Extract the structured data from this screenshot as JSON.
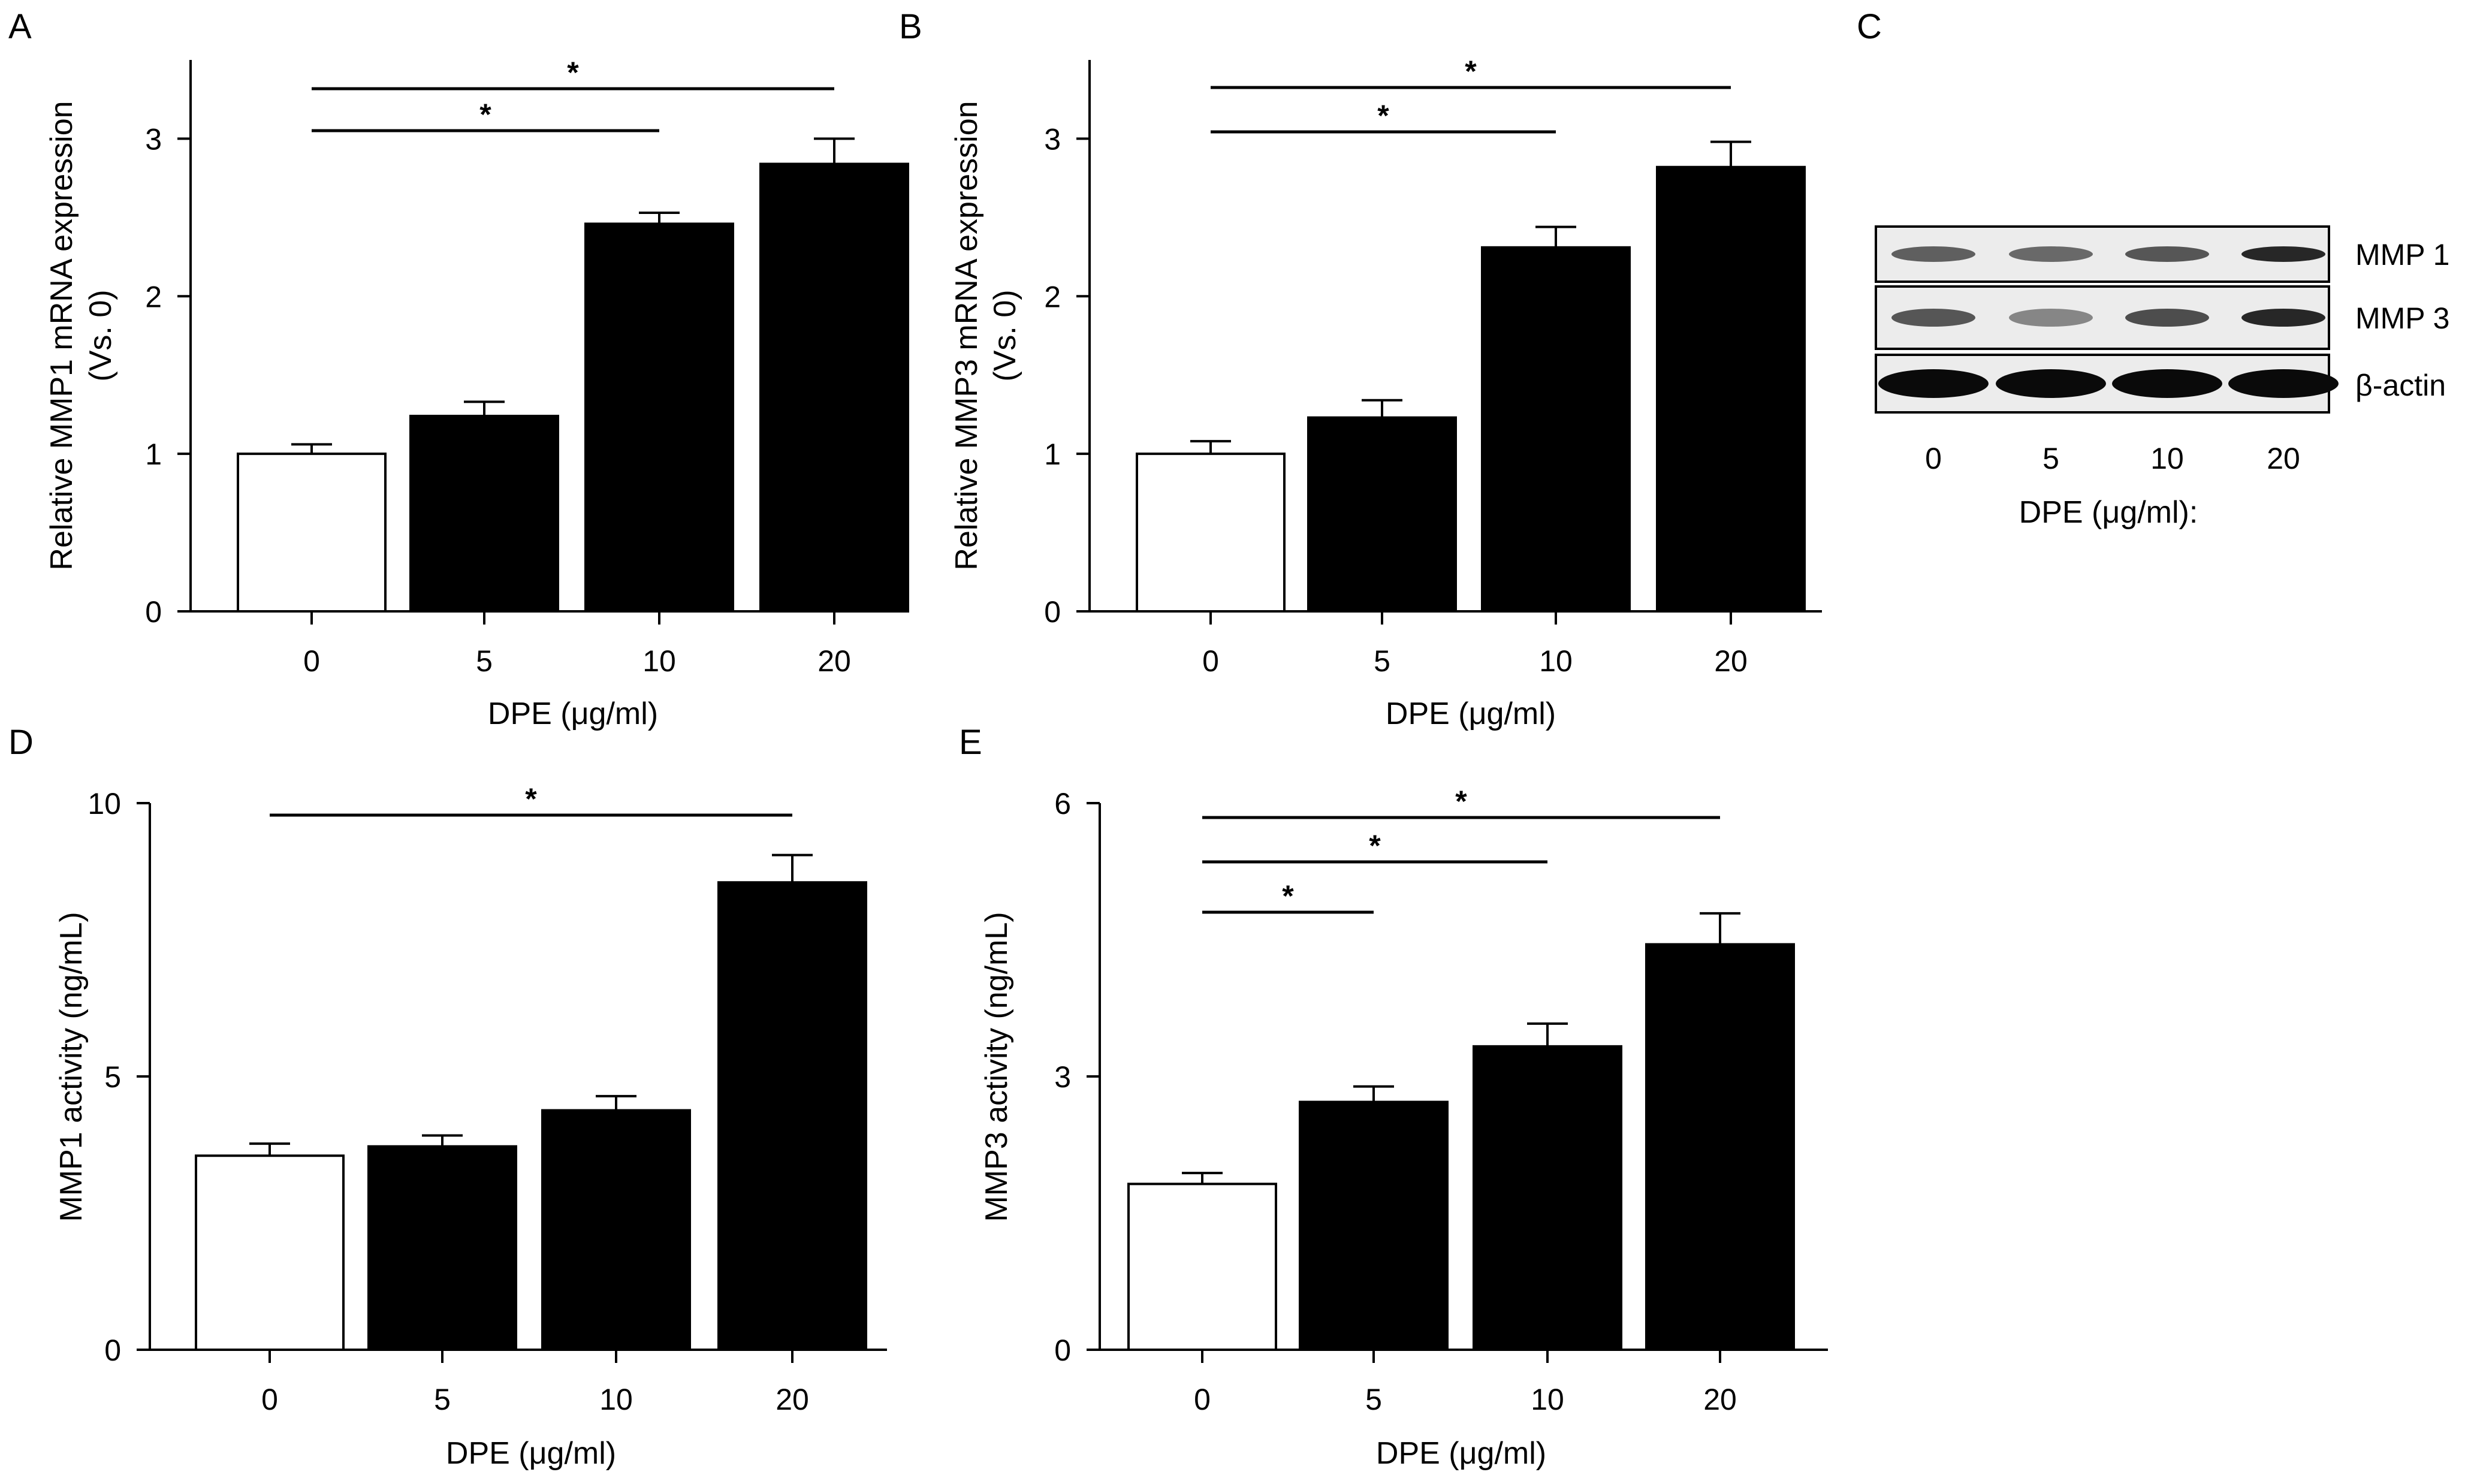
{
  "chart_data": [
    {
      "panel": "A",
      "type": "bar",
      "categories": [
        "0",
        "5",
        "10",
        "20"
      ],
      "values": [
        1.0,
        1.24,
        2.46,
        2.84
      ],
      "errors": [
        0.06,
        0.09,
        0.07,
        0.16
      ],
      "bar_colors": [
        "#ffffff",
        "#000000",
        "#000000",
        "#000000"
      ],
      "ylabel": "Relative MMP1 mRNA expression",
      "ylabel2": "(Vs. 0)",
      "xlabel": "DPE (μg/ml)",
      "ylim": [
        0,
        3.5
      ],
      "yticks": [
        0,
        1,
        2,
        3
      ],
      "significance": [
        {
          "from": "0",
          "to": "20",
          "label": "*"
        },
        {
          "from": "0",
          "to": "10",
          "label": "*"
        }
      ]
    },
    {
      "panel": "B",
      "type": "bar",
      "categories": [
        "0",
        "5",
        "10",
        "20"
      ],
      "values": [
        1.0,
        1.23,
        2.31,
        2.82
      ],
      "errors": [
        0.08,
        0.11,
        0.13,
        0.16
      ],
      "bar_colors": [
        "#ffffff",
        "#000000",
        "#000000",
        "#000000"
      ],
      "ylabel": "Relative MMP3 mRNA expression",
      "ylabel2": "(Vs. 0)",
      "xlabel": "DPE (μg/ml)",
      "ylim": [
        0,
        3.5
      ],
      "yticks": [
        0,
        1,
        2,
        3
      ],
      "significance": [
        {
          "from": "0",
          "to": "20",
          "label": "*"
        },
        {
          "from": "0",
          "to": "10",
          "label": "*"
        }
      ]
    },
    {
      "panel": "D",
      "type": "bar",
      "categories": [
        "0",
        "5",
        "10",
        "20"
      ],
      "values": [
        3.55,
        3.72,
        4.38,
        8.55
      ],
      "errors": [
        0.22,
        0.2,
        0.26,
        0.5
      ],
      "bar_colors": [
        "#ffffff",
        "#000000",
        "#000000",
        "#000000"
      ],
      "ylabel": "MMP1  activity (ng/mL)",
      "xlabel": "DPE (μg/ml)",
      "ylim": [
        0,
        10
      ],
      "yticks": [
        0,
        5,
        10
      ],
      "significance": [
        {
          "from": "0",
          "to": "20",
          "label": "*"
        }
      ]
    },
    {
      "panel": "E",
      "type": "bar",
      "categories": [
        "0",
        "5",
        "10",
        "20"
      ],
      "values": [
        1.82,
        2.72,
        3.33,
        4.45
      ],
      "errors": [
        0.12,
        0.17,
        0.25,
        0.34
      ],
      "bar_colors": [
        "#ffffff",
        "#000000",
        "#000000",
        "#000000"
      ],
      "ylabel": "MMP3  activity (ng/mL)",
      "xlabel": "DPE (μg/ml)",
      "ylim": [
        0,
        6
      ],
      "yticks": [
        0,
        3,
        6
      ],
      "significance": [
        {
          "from": "0",
          "to": "20",
          "label": "*"
        },
        {
          "from": "0",
          "to": "10",
          "label": "*"
        },
        {
          "from": "0",
          "to": "5",
          "label": "*"
        }
      ]
    }
  ],
  "western_blot": {
    "panel": "C",
    "lanes": [
      "0",
      "5",
      "10",
      "20"
    ],
    "xlabel": "DPE (μg/ml):",
    "rows": [
      {
        "label": "MMP 1",
        "intensities": [
          0.55,
          0.5,
          0.6,
          0.85
        ]
      },
      {
        "label": "MMP 3",
        "intensities": [
          0.6,
          0.35,
          0.65,
          0.85
        ]
      },
      {
        "label": "β-actin",
        "intensities": [
          1.0,
          1.0,
          1.0,
          1.0
        ]
      }
    ]
  }
}
